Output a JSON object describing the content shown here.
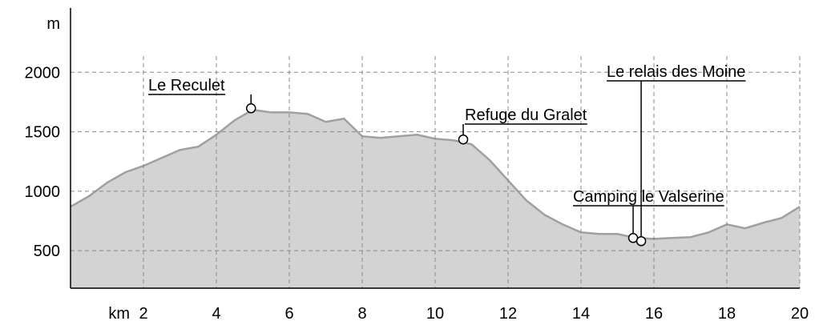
{
  "chart_data": {
    "type": "area",
    "xlabel": "km",
    "ylabel": "m",
    "x": [
      0,
      0.5,
      1,
      1.5,
      2,
      2.5,
      3,
      3.5,
      4,
      4.5,
      5,
      5.5,
      6,
      6.5,
      7,
      7.5,
      8,
      8.5,
      9,
      9.5,
      10,
      10.5,
      11,
      11.5,
      12,
      12.5,
      13,
      13.5,
      14,
      14.5,
      15,
      15.5,
      16,
      16.5,
      17,
      17.5,
      18,
      18.5,
      19,
      19.5,
      20
    ],
    "values": [
      870,
      957,
      1071,
      1159,
      1213,
      1280,
      1347,
      1374,
      1475,
      1596,
      1684,
      1663,
      1663,
      1650,
      1583,
      1610,
      1462,
      1448,
      1462,
      1475,
      1441,
      1428,
      1394,
      1260,
      1091,
      923,
      802,
      721,
      654,
      641,
      641,
      607,
      600,
      607,
      614,
      654,
      721,
      688,
      735,
      775,
      870
    ],
    "color": "#d3d3d3",
    "line_color": "#a0a0a0",
    "xlim": [
      0,
      20
    ],
    "ylim": [
      185,
      2540
    ],
    "xticks": [
      2,
      4,
      6,
      8,
      10,
      12,
      14,
      16,
      18,
      20
    ],
    "yticks": [
      500,
      1000,
      1500,
      2000
    ],
    "grid": true,
    "waypoints": [
      {
        "name": "Le Reculet",
        "km": 4.95,
        "elevation": 1697
      },
      {
        "name": "Refuge du Gralet",
        "km": 10.77,
        "elevation": 1435
      },
      {
        "name": "Camping le Valserine",
        "km": 15.43,
        "elevation": 607
      },
      {
        "name": "Le relais des Moine",
        "km": 15.65,
        "elevation": 580
      }
    ]
  }
}
